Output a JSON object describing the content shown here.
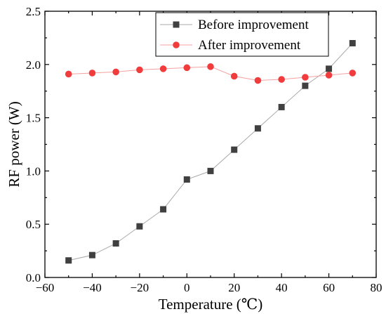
{
  "chart_data": {
    "type": "line",
    "title": "",
    "xlabel": "Temperature (℃)",
    "ylabel": "RF power (W)",
    "xlim": [
      -60,
      80
    ],
    "ylim": [
      0.0,
      2.5
    ],
    "xticks": [
      "−60",
      "−40",
      "−20",
      "0",
      "20",
      "40",
      "60",
      "80"
    ],
    "xtick_values": [
      -60,
      -40,
      -20,
      0,
      20,
      40,
      60,
      80
    ],
    "yticks": [
      "0.0",
      "0.5",
      "1.0",
      "1.5",
      "2.0",
      "2.5"
    ],
    "ytick_values": [
      0.0,
      0.5,
      1.0,
      1.5,
      2.0,
      2.5
    ],
    "grid": false,
    "legend_position": "top-right",
    "series": [
      {
        "name": "Before improvement",
        "marker": "square",
        "color": "#404040",
        "line_color": "#a9a9a9",
        "x": [
          -50,
          -40,
          -30,
          -20,
          -10,
          0,
          10,
          20,
          30,
          40,
          50,
          60,
          70
        ],
        "y": [
          0.16,
          0.21,
          0.32,
          0.48,
          0.64,
          0.92,
          1.0,
          1.2,
          1.4,
          1.6,
          1.8,
          1.96,
          2.2
        ]
      },
      {
        "name": "After improvement",
        "marker": "circle",
        "color": "#f03c3c",
        "line_color": "#f4a0a0",
        "x": [
          -50,
          -40,
          -30,
          -20,
          -10,
          0,
          10,
          20,
          30,
          40,
          50,
          60,
          70
        ],
        "y": [
          1.91,
          1.92,
          1.93,
          1.95,
          1.96,
          1.97,
          1.98,
          1.89,
          1.85,
          1.86,
          1.88,
          1.9,
          1.92
        ]
      }
    ]
  }
}
